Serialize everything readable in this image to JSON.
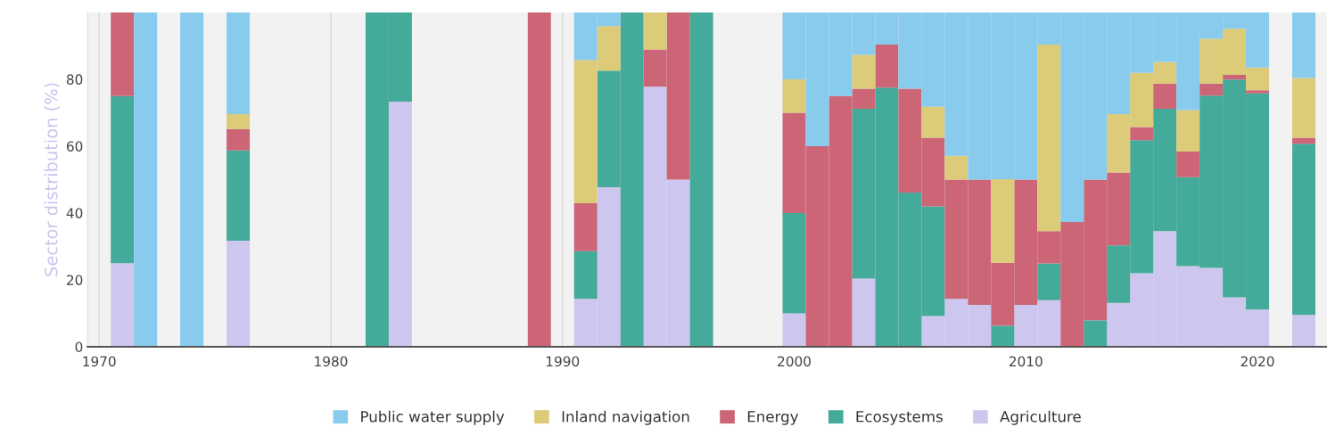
{
  "chart_data": {
    "type": "bar",
    "stacked": true,
    "x": [
      1971,
      1972,
      1974,
      1976,
      1982,
      1983,
      1989,
      1991,
      1992,
      1993,
      1994,
      1995,
      1996,
      2000,
      2001,
      2002,
      2003,
      2004,
      2005,
      2006,
      2007,
      2008,
      2009,
      2010,
      2011,
      2012,
      2013,
      2014,
      2015,
      2016,
      2017,
      2018,
      2019,
      2020,
      2022
    ],
    "ylabel": "Sector distribution (%)",
    "series": [
      {
        "name": "Agriculture",
        "color": "#cdc7ef",
        "values": [
          25,
          0,
          0,
          31.7,
          0,
          73.3,
          0,
          14.3,
          47.7,
          0,
          77.8,
          50,
          0,
          10,
          0,
          0,
          20.4,
          0,
          0,
          9.2,
          14.3,
          12.5,
          0,
          12.5,
          13.9,
          0,
          0,
          13.1,
          22,
          34.6,
          24.1,
          23.6,
          14.8,
          11.1,
          9.5
        ]
      },
      {
        "name": "Ecosystems",
        "color": "#44aa99",
        "values": [
          50,
          0,
          0,
          27,
          100,
          26.7,
          0,
          14.3,
          34.9,
          100,
          0,
          0,
          100,
          30,
          0,
          0,
          50.8,
          77.5,
          46.1,
          32.8,
          0,
          0,
          6.3,
          0,
          11,
          0,
          7.9,
          17.2,
          39.8,
          36.6,
          26.6,
          51.5,
          65.1,
          64.7,
          51.2
        ]
      },
      {
        "name": "Energy",
        "color": "#cc6677",
        "values": [
          25,
          0,
          0,
          6.4,
          0,
          0,
          100,
          14.3,
          0,
          0,
          11.1,
          50,
          0,
          30,
          60,
          75,
          6,
          12.9,
          31.1,
          20.5,
          35.7,
          37.5,
          18.8,
          37.5,
          9.7,
          37.3,
          42.1,
          21.8,
          3.9,
          7.5,
          7.7,
          3.6,
          1.4,
          0.9,
          1.8
        ]
      },
      {
        "name": "Inland navigation",
        "color": "#dccb78",
        "values": [
          0,
          0,
          0,
          4.5,
          0,
          0,
          0,
          42.9,
          13.3,
          0,
          11.1,
          0,
          0,
          10,
          0,
          0,
          10.1,
          0,
          0,
          9.3,
          7.1,
          0,
          25,
          0,
          55.8,
          0,
          0,
          17.5,
          16.2,
          6.5,
          12.4,
          13.4,
          13.8,
          6.8,
          17.9
        ]
      },
      {
        "name": "Public water supply",
        "color": "#89cbed",
        "values": [
          0,
          100,
          100,
          30.4,
          0,
          0,
          0,
          14.3,
          4.1,
          0,
          0,
          0,
          0,
          20,
          40,
          25,
          12.7,
          9.6,
          22.8,
          28.2,
          42.9,
          50,
          50,
          50,
          9.6,
          62.7,
          50,
          30.4,
          18.1,
          14.8,
          29.2,
          7.9,
          4.9,
          16.5,
          19.6
        ]
      }
    ],
    "xlim": [
      1969.5,
      2023
    ],
    "xticks": [
      1970,
      1980,
      1990,
      2000,
      2010,
      2020
    ],
    "ylim": [
      0,
      100
    ],
    "yticks": [
      0,
      20,
      40,
      60,
      80
    ],
    "grid": "x",
    "legend": "bottom"
  }
}
